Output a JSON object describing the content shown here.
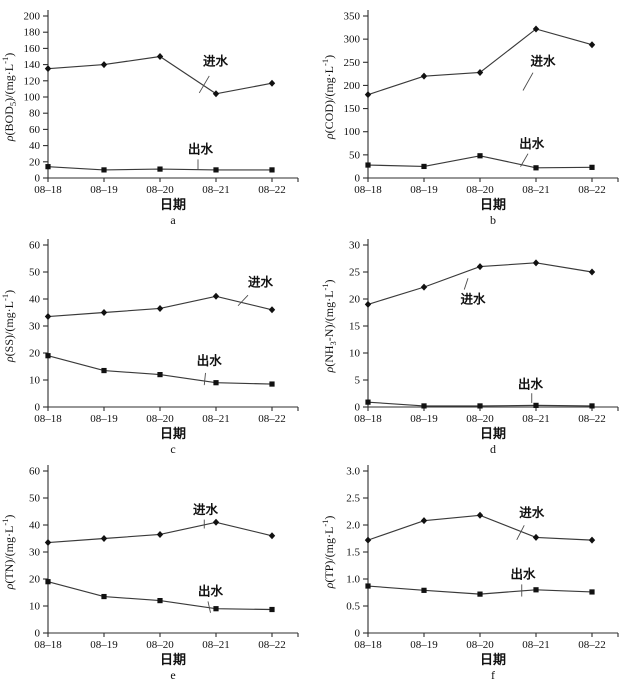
{
  "figure": {
    "background": "#ffffff",
    "line_color": "#3a3a3a",
    "text_color": "#111111",
    "categories": [
      "08–18",
      "08–19",
      "08–20",
      "08–21",
      "08–22"
    ],
    "x_axis_label": "日期",
    "series_names": {
      "influent": "进水",
      "effluent": "出水"
    }
  },
  "chart_data": [
    {
      "type": "line",
      "letter": "a",
      "ylabel_text": "ρ(BOD5)/(mg·L-1)",
      "ylabel_parts": [
        {
          "t": "ρ",
          "s": "i"
        },
        {
          "t": "(BOD",
          "s": "n"
        },
        {
          "t": "5",
          "s": "sub"
        },
        {
          "t": ")/(mg·L",
          "s": "n"
        },
        {
          "t": "-1",
          "s": "sup"
        },
        {
          "t": ")",
          "s": "n"
        }
      ],
      "xlabel": "日期",
      "ymax": 200,
      "ystep": 20,
      "ydec": 0,
      "ylim": [
        0,
        200
      ],
      "series": [
        {
          "name": "进水",
          "key": "influent",
          "marker": "diamond",
          "values": [
            135,
            140,
            150,
            104,
            117
          ],
          "label": [
            0.67,
            0.28
          ],
          "leader": [
            0.645,
            0.37,
            0.605,
            0.475
          ]
        },
        {
          "name": "出水",
          "key": "effluent",
          "marker": "square",
          "values": [
            14,
            10,
            11,
            10,
            10
          ],
          "label": [
            0.61,
            0.825
          ],
          "leader": [
            0.6,
            0.885,
            0.6,
            0.95
          ]
        }
      ]
    },
    {
      "type": "line",
      "letter": "b",
      "ylabel_text": "ρ(COD)/(mg·L-1)",
      "ylabel_parts": [
        {
          "t": "ρ",
          "s": "i"
        },
        {
          "t": "(COD)/(mg·L",
          "s": "n"
        },
        {
          "t": "-1",
          "s": "sup"
        },
        {
          "t": ")",
          "s": "n"
        }
      ],
      "xlabel": "日期",
      "ymax": 350,
      "ystep": 50,
      "ydec": 0,
      "ylim": [
        0,
        350
      ],
      "series": [
        {
          "name": "进水",
          "key": "influent",
          "marker": "diamond",
          "values": [
            180,
            220,
            228,
            322,
            288
          ],
          "label": [
            0.7,
            0.28
          ],
          "leader": [
            0.66,
            0.35,
            0.62,
            0.46
          ]
        },
        {
          "name": "出水",
          "key": "effluent",
          "marker": "square",
          "values": [
            28,
            25,
            48,
            22,
            23
          ],
          "label": [
            0.655,
            0.79
          ],
          "leader": [
            0.64,
            0.85,
            0.61,
            0.93
          ]
        }
      ]
    },
    {
      "type": "line",
      "letter": "c",
      "ylabel_text": "ρ(SS)/(mg·L-1)",
      "ylabel_parts": [
        {
          "t": "ρ",
          "s": "i"
        },
        {
          "t": "(SS)/(mg·L",
          "s": "n"
        },
        {
          "t": "-1",
          "s": "sup"
        },
        {
          "t": ")",
          "s": "n"
        }
      ],
      "xlabel": "日期",
      "ymax": 60,
      "ystep": 10,
      "ydec": 0,
      "ylim": [
        0,
        60
      ],
      "series": [
        {
          "name": "进水",
          "key": "influent",
          "marker": "diamond",
          "values": [
            33.5,
            35,
            36.5,
            41,
            36
          ],
          "label": [
            0.85,
            0.23
          ],
          "leader": [
            0.8,
            0.31,
            0.76,
            0.375
          ]
        },
        {
          "name": "出水",
          "key": "effluent",
          "marker": "square",
          "values": [
            19,
            13.5,
            12,
            9,
            8.5
          ],
          "label": [
            0.645,
            0.715
          ],
          "leader": [
            0.63,
            0.79,
            0.625,
            0.865
          ]
        }
      ]
    },
    {
      "type": "line",
      "letter": "d",
      "ylabel_text": "ρ(NH3-N)/(mg·L-1)",
      "ylabel_parts": [
        {
          "t": "ρ",
          "s": "i"
        },
        {
          "t": "(NH",
          "s": "n"
        },
        {
          "t": "3",
          "s": "sub"
        },
        {
          "t": "-N)/(mg·L",
          "s": "n"
        },
        {
          "t": "-1",
          "s": "sup"
        },
        {
          "t": ")",
          "s": "n"
        }
      ],
      "xlabel": "日期",
      "ymax": 30,
      "ystep": 5,
      "ydec": 0,
      "ylim": [
        0,
        30
      ],
      "series": [
        {
          "name": "进水",
          "key": "influent",
          "marker": "diamond",
          "values": [
            19,
            22.2,
            26,
            26.7,
            25
          ],
          "label": [
            0.42,
            0.335
          ],
          "leader": [
            0.4,
            0.205,
            0.385,
            0.275
          ]
        },
        {
          "name": "出水",
          "key": "effluent",
          "marker": "square",
          "values": [
            0.9,
            0.2,
            0.2,
            0.3,
            0.2
          ],
          "label": [
            0.65,
            0.86
          ],
          "leader": [
            0.655,
            0.915,
            0.655,
            0.975
          ]
        }
      ]
    },
    {
      "type": "line",
      "letter": "e",
      "ylabel_text": "ρ(TN)/(mg·L-1)",
      "ylabel_parts": [
        {
          "t": "ρ",
          "s": "i"
        },
        {
          "t": "(TN)/(mg·L",
          "s": "n"
        },
        {
          "t": "-1",
          "s": "sup"
        },
        {
          "t": ")",
          "s": "n"
        }
      ],
      "xlabel": "日期",
      "ymax": 60,
      "ystep": 10,
      "ydec": 0,
      "ylim": [
        0,
        60
      ],
      "series": [
        {
          "name": "进水",
          "key": "influent",
          "marker": "diamond",
          "values": [
            33.5,
            35,
            36.5,
            41,
            36
          ],
          "label": [
            0.63,
            0.24
          ],
          "leader": [
            0.625,
            0.3,
            0.625,
            0.355
          ]
        },
        {
          "name": "出水",
          "key": "effluent",
          "marker": "square",
          "values": [
            19,
            13.5,
            12,
            9,
            8.7
          ],
          "label": [
            0.65,
            0.745
          ],
          "leader": [
            0.64,
            0.805,
            0.65,
            0.875
          ]
        }
      ]
    },
    {
      "type": "line",
      "letter": "f",
      "ylabel_text": "ρ(TP)/(mg·L-1)",
      "ylabel_parts": [
        {
          "t": "ρ",
          "s": "i"
        },
        {
          "t": "(TP)/(mg·L",
          "s": "n"
        },
        {
          "t": "-1",
          "s": "sup"
        },
        {
          "t": ")",
          "s": "n"
        }
      ],
      "xlabel": "日期",
      "ymax": 3.0,
      "ystep": 0.5,
      "ydec": 1,
      "ylim": [
        0,
        3.0
      ],
      "series": [
        {
          "name": "进水",
          "key": "influent",
          "marker": "diamond",
          "values": [
            1.72,
            2.08,
            2.18,
            1.77,
            1.72
          ],
          "label": [
            0.655,
            0.26
          ],
          "leader": [
            0.625,
            0.335,
            0.595,
            0.425
          ]
        },
        {
          "name": "出水",
          "key": "effluent",
          "marker": "square",
          "values": [
            0.87,
            0.79,
            0.72,
            0.8,
            0.76
          ],
          "label": [
            0.62,
            0.64
          ],
          "leader": [
            0.615,
            0.7,
            0.615,
            0.775
          ]
        }
      ]
    }
  ]
}
